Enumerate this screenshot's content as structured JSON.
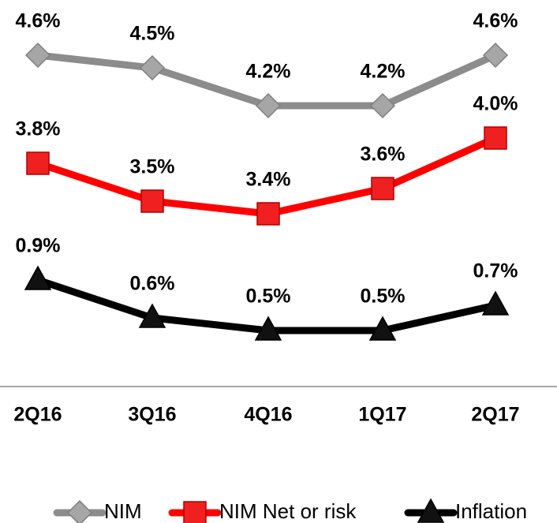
{
  "chart_data": {
    "type": "line",
    "categories": [
      "2Q16",
      "3Q16",
      "4Q16",
      "1Q17",
      "2Q17"
    ],
    "series": [
      {
        "name": "NIM",
        "color": "#8c8c8c",
        "marker": "diamond",
        "values": [
          4.6,
          4.5,
          4.2,
          4.2,
          4.6
        ],
        "value_labels": [
          "4.6%",
          "4.5%",
          "4.2%",
          "4.2%",
          "4.6%"
        ]
      },
      {
        "name": "NIM Net or risk",
        "color": "#ff0000",
        "marker": "square",
        "values": [
          3.8,
          3.5,
          3.4,
          3.6,
          4.0
        ],
        "value_labels": [
          "3.8%",
          "3.5%",
          "3.4%",
          "3.6%",
          "4.0%"
        ]
      },
      {
        "name": "Inflation",
        "color": "#000000",
        "marker": "triangle",
        "values": [
          0.9,
          0.6,
          0.5,
          0.5,
          0.7
        ],
        "value_labels": [
          "0.9%",
          "0.6%",
          "0.5%",
          "0.5%",
          "0.7%"
        ]
      }
    ],
    "legend": "bottom"
  }
}
